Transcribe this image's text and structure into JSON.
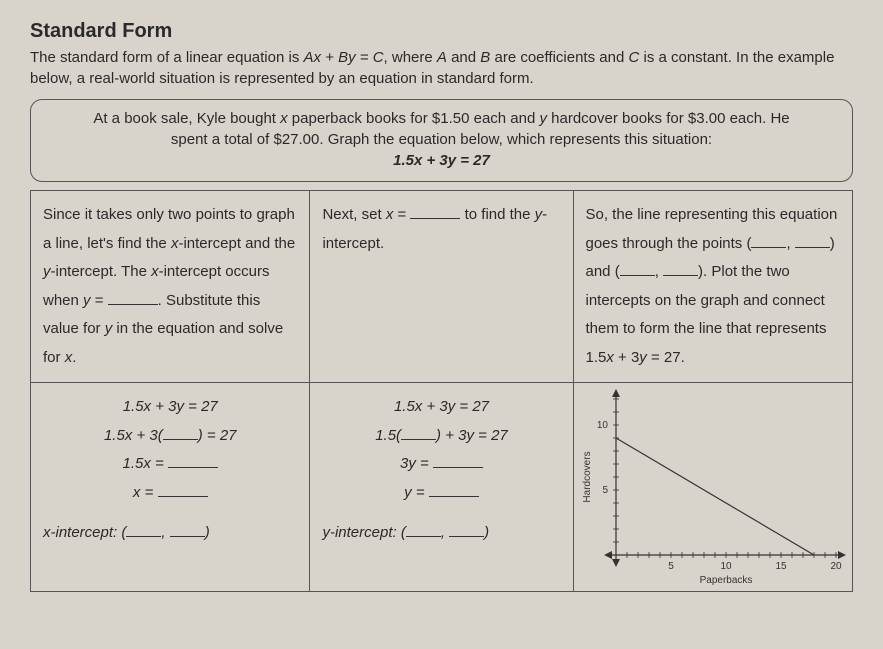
{
  "header": {
    "title": "Standard Form",
    "intro_html": "The standard form of a linear equation is <span class=\"italic\">Ax + By = C</span>, where <span class=\"italic\">A</span> and <span class=\"italic\">B</span> are coefficients and <span class=\"italic\">C</span> is a constant. In the example below, a real-world situation is represented by an equation in standard form."
  },
  "problem": {
    "text_html": "At a book sale, Kyle bought <span class=\"italic\">x</span> paperback books for $1.50 each and <span class=\"italic\">y</span> hardcover books for $3.00 each. He<br>spent a total of $27.00. Graph the equation below, which represents this situation:",
    "equation": "1.5x + 3y = 27"
  },
  "row1": {
    "col1_html": "Since it takes only two points to graph a line, let's find the <span class=\"italic\">x</span>-intercept and the <span class=\"italic\">y</span>-intercept. The <span class=\"italic\">x</span>-intercept occurs when <span class=\"italic\">y</span> = <span class=\"blank\"></span>. Substitute this value for <span class=\"italic\">y</span> in the equation and solve for <span class=\"italic\">x</span>.",
    "col2_html": "Next, set <span class=\"italic\">x</span> = <span class=\"blank\"></span> to find the <span class=\"italic\">y</span>-intercept.",
    "col3_html": "So, the line representing this equation goes through the points (<span class=\"blank sm\"></span>, <span class=\"blank sm\"></span>) and (<span class=\"blank sm\"></span>, <span class=\"blank sm\"></span>). Plot the two intercepts on the graph and connect them to form the line that represents 1.5<span class=\"italic\">x</span> + 3<span class=\"italic\">y</span> = 27."
  },
  "work": {
    "left": {
      "l1": "1.5x + 3y = 27",
      "l2_pre": "1.5x + 3(",
      "l2_post": ") = 27",
      "l3_pre": "1.5x = ",
      "l4_pre": "x = ",
      "label": "x-intercept: ("
    },
    "mid": {
      "l1": "1.5x + 3y = 27",
      "l2_pre": "1.5(",
      "l2_post": ") + 3y = 27",
      "l3_pre": "3y = ",
      "l4_pre": "y = ",
      "label": "y-intercept: ("
    }
  },
  "graph": {
    "type": "line",
    "xlabel": "Paperbacks",
    "ylabel": "Hardcovers",
    "xlim": [
      0,
      20
    ],
    "ylim": [
      0,
      12
    ],
    "xtick_positions": [
      5,
      10,
      15,
      20
    ],
    "xtick_labels": [
      "5",
      "10",
      "15",
      "20"
    ],
    "ytick_positions": [
      5,
      10
    ],
    "ytick_labels": [
      "5",
      "10"
    ],
    "line_points": [
      [
        0,
        9
      ],
      [
        18,
        0
      ]
    ],
    "line_color": "#333333",
    "line_width": 1.2,
    "axis_color": "#333333",
    "tick_color": "#333333",
    "background_color": "transparent",
    "label_fontsize": 10,
    "arrowheads": true
  }
}
